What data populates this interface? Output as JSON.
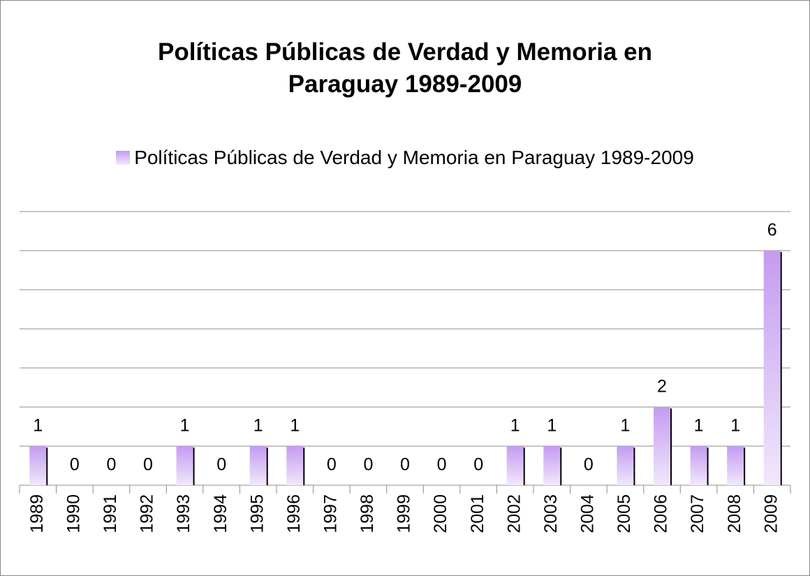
{
  "chart_data": {
    "type": "bar",
    "title": "Políticas Públicas de Verdad y Memoria en Paraguay 1989-2009",
    "categories": [
      "1989",
      "1990",
      "1991",
      "1992",
      "1993",
      "1994",
      "1995",
      "1996",
      "1997",
      "1998",
      "1999",
      "2000",
      "2001",
      "2002",
      "2003",
      "2004",
      "2005",
      "2006",
      "2007",
      "2008",
      "2009"
    ],
    "series": [
      {
        "name": "Políticas Públicas de Verdad y Memoria en Paraguay 1989-2009",
        "color": "#c49bf0",
        "values": [
          1,
          0,
          0,
          0,
          1,
          0,
          1,
          1,
          0,
          0,
          0,
          0,
          0,
          1,
          1,
          0,
          1,
          2,
          1,
          1,
          6
        ]
      }
    ],
    "ylim": [
      0,
      7
    ],
    "yticks": [
      0,
      1,
      2,
      3,
      4,
      5,
      6,
      7
    ],
    "grid": true,
    "legend": "top"
  }
}
